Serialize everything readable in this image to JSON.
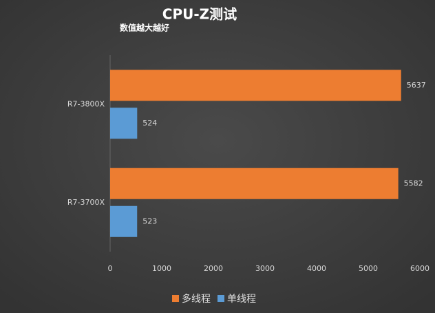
{
  "chart_data": {
    "type": "barh",
    "title": "CPU-Z测试",
    "subtitle": "数值越大越好",
    "categories": [
      "R7-3800X",
      "R7-3700X"
    ],
    "series": [
      {
        "name": "多线程",
        "color": "#ed7d31",
        "values": [
          5637,
          5582
        ]
      },
      {
        "name": "单线程",
        "color": "#5b9bd5",
        "values": [
          524,
          523
        ]
      }
    ],
    "xlim": [
      0,
      6000
    ],
    "xticks": [
      0,
      1000,
      2000,
      3000,
      4000,
      5000,
      6000
    ],
    "grid": false,
    "legend": "bottom"
  }
}
